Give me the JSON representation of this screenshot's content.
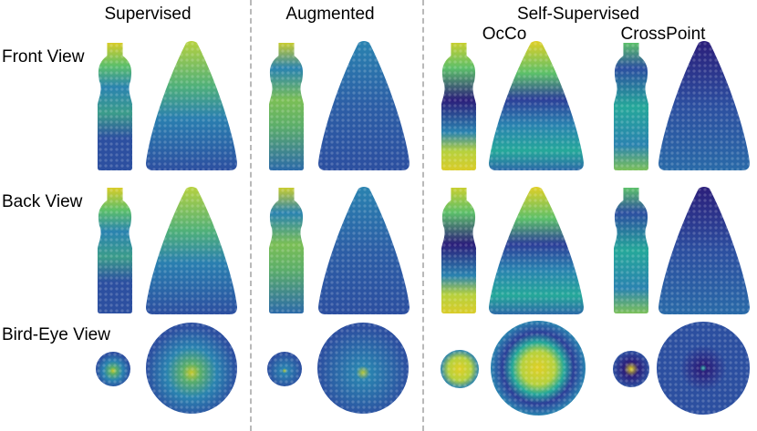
{
  "headers": {
    "supervised": "Supervised",
    "augmented": "Augmented",
    "self_supervised": "Self-Supervised",
    "occo": "OcCo",
    "crosspoint": "CrossPoint"
  },
  "row_labels": {
    "front": "Front View",
    "back": "Back View",
    "bird": "Bird-Eye View"
  },
  "colormap": [
    "#2b1e7a",
    "#2c4fa0",
    "#2a83b0",
    "#25a89a",
    "#5cc06a",
    "#b6d13e",
    "#e8d21f"
  ],
  "panels": [
    {
      "column": "Supervised",
      "view": "Front View",
      "bottle_heat": "yellow top, green mid",
      "cone_heat": "yellow-green upper stripe"
    },
    {
      "column": "Augmented",
      "view": "Front View",
      "bottle_heat": "yellow top, green patches",
      "cone_heat": "mostly blue"
    },
    {
      "column": "OcCo",
      "view": "Front View",
      "bottle_heat": "yellow bands top and bottom",
      "cone_heat": "horizontal yellow/green bands"
    },
    {
      "column": "CrossPoint",
      "view": "Front View",
      "bottle_heat": "green top and bottom",
      "cone_heat": "mostly blue"
    }
  ]
}
